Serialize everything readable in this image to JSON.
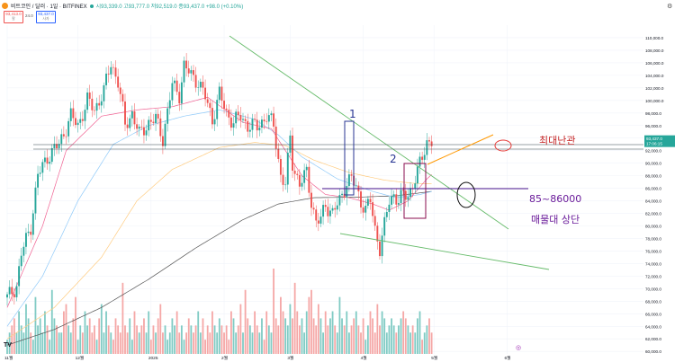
{
  "header": {
    "symbol": "비트코인 / 달러 · 1일 · BITFINEX",
    "ohlc": "시93,339.0 고93,777.0 저92,519.0 종93,437.0 +98.0 (+0.10%)",
    "sell_price": "93,413.0",
    "sell_label": "팔",
    "spread": "24.0",
    "buy_price": "93,437.0",
    "buy_label": "사자"
  },
  "chart_data": {
    "type": "candlestick",
    "title": "비트코인 / 달러 · 1일 · BITFINEX",
    "y_ticks": [
      60000,
      62000,
      64000,
      66000,
      68000,
      70000,
      72000,
      74000,
      76000,
      78000,
      80000,
      82000,
      84000,
      86000,
      88000,
      90000,
      92000,
      94000,
      96000,
      98000,
      100000,
      102000,
      104000,
      106000,
      108000,
      110000
    ],
    "y_tick_labels": [
      "60,000.0",
      "62,000.0",
      "64,000.0",
      "66,000.0",
      "68,000.0",
      "70,000.0",
      "72,000.0",
      "74,000.0",
      "76,000.0",
      "78,000.0",
      "80,000.0",
      "82,000.0",
      "84,000.0",
      "86,000.0",
      "88,000.0",
      "90,000.0",
      "92,000.0",
      "94,000.0",
      "96,000.0",
      "98,000.0",
      "100,000.0",
      "102,000.0",
      "104,000.0",
      "106,000.0",
      "108,000.0",
      "110,000.0"
    ],
    "ylim": [
      59600,
      112000
    ],
    "x_labels": [
      "11월",
      "12월",
      "2025",
      "2월",
      "3월",
      "4월",
      "5월",
      "6월"
    ],
    "x_label_days": [
      0,
      30,
      61,
      92,
      120,
      151,
      181,
      212
    ],
    "x_range": [
      0,
      235
    ],
    "last_day": 180,
    "price_path": [
      [
        0,
        68500
      ],
      [
        4,
        70500
      ],
      [
        6,
        75500
      ],
      [
        10,
        80000
      ],
      [
        13,
        88000
      ],
      [
        17,
        91000
      ],
      [
        22,
        93000
      ],
      [
        27,
        97500
      ],
      [
        30,
        96000
      ],
      [
        34,
        100000
      ],
      [
        37,
        98500
      ],
      [
        41,
        101500
      ],
      [
        44,
        106000
      ],
      [
        47,
        103000
      ],
      [
        50,
        96000
      ],
      [
        53,
        98000
      ],
      [
        56,
        94500
      ],
      [
        60,
        96500
      ],
      [
        63,
        97000
      ],
      [
        66,
        94000
      ],
      [
        70,
        102500
      ],
      [
        73,
        101000
      ],
      [
        75,
        105500
      ],
      [
        78,
        104000
      ],
      [
        81,
        103000
      ],
      [
        84,
        100500
      ],
      [
        87,
        97000
      ],
      [
        90,
        101000
      ],
      [
        93,
        98000
      ],
      [
        96,
        96500
      ],
      [
        99,
        97500
      ],
      [
        102,
        96000
      ],
      [
        106,
        95800
      ],
      [
        110,
        97500
      ],
      [
        113,
        96000
      ],
      [
        116,
        88000
      ],
      [
        118,
        86500
      ],
      [
        120,
        94000
      ],
      [
        121,
        90000
      ],
      [
        124,
        86500
      ],
      [
        127,
        88500
      ],
      [
        129,
        84000
      ],
      [
        131,
        80500
      ],
      [
        133,
        81000
      ],
      [
        135,
        83500
      ],
      [
        138,
        82000
      ],
      [
        141,
        84000
      ],
      [
        144,
        87000
      ],
      [
        146,
        87500
      ],
      [
        148,
        86000
      ],
      [
        150,
        84000
      ],
      [
        152,
        82500
      ],
      [
        154,
        84000
      ],
      [
        156,
        79500
      ],
      [
        158,
        76500
      ],
      [
        160,
        80000
      ],
      [
        162,
        84000
      ],
      [
        164,
        85000
      ],
      [
        166,
        84000
      ],
      [
        168,
        84800
      ],
      [
        170,
        85000
      ],
      [
        172,
        86500
      ],
      [
        174,
        88500
      ],
      [
        176,
        91000
      ],
      [
        178,
        93500
      ],
      [
        180,
        93437
      ]
    ],
    "ma_short": [
      [
        0,
        67000
      ],
      [
        15,
        80000
      ],
      [
        25,
        92000
      ],
      [
        40,
        97500
      ],
      [
        55,
        98500
      ],
      [
        70,
        99000
      ],
      [
        85,
        100500
      ],
      [
        100,
        96500
      ],
      [
        112,
        95500
      ],
      [
        118,
        92000
      ],
      [
        125,
        88000
      ],
      [
        135,
        85000
      ],
      [
        145,
        84500
      ],
      [
        155,
        83500
      ],
      [
        162,
        82500
      ],
      [
        170,
        84000
      ],
      [
        178,
        87500
      ],
      [
        180,
        88200
      ]
    ],
    "ma_mid": [
      [
        0,
        64000
      ],
      [
        15,
        72000
      ],
      [
        30,
        84000
      ],
      [
        45,
        93000
      ],
      [
        60,
        96000
      ],
      [
        75,
        97500
      ],
      [
        90,
        98500
      ],
      [
        105,
        97000
      ],
      [
        115,
        94500
      ],
      [
        125,
        91000
      ],
      [
        140,
        87500
      ],
      [
        155,
        85500
      ],
      [
        165,
        84500
      ],
      [
        175,
        85000
      ],
      [
        180,
        85500
      ]
    ],
    "ma_long": [
      [
        0,
        62000
      ],
      [
        20,
        67000
      ],
      [
        40,
        75000
      ],
      [
        55,
        84000
      ],
      [
        70,
        89000
      ],
      [
        90,
        92500
      ],
      [
        105,
        93300
      ],
      [
        118,
        92800
      ],
      [
        130,
        90500
      ],
      [
        145,
        88500
      ],
      [
        160,
        87300
      ],
      [
        172,
        86800
      ],
      [
        180,
        86700
      ]
    ],
    "ma_200": [
      [
        0,
        61000
      ],
      [
        20,
        63500
      ],
      [
        40,
        67000
      ],
      [
        60,
        71500
      ],
      [
        80,
        76500
      ],
      [
        100,
        81000
      ],
      [
        115,
        83500
      ],
      [
        130,
        84500
      ],
      [
        150,
        84600
      ],
      [
        165,
        84800
      ],
      [
        180,
        85500
      ]
    ],
    "volume": [
      2,
      3,
      4,
      5,
      3,
      6,
      4,
      3,
      7,
      5,
      3,
      2,
      8,
      4,
      5,
      3,
      6,
      4,
      2,
      9,
      5,
      4,
      3,
      3,
      6,
      7,
      4,
      3,
      5,
      8,
      2,
      4,
      3,
      6,
      4,
      5,
      3,
      4,
      2,
      5,
      7,
      3,
      6,
      4,
      3,
      2,
      5,
      4,
      3,
      10,
      4,
      3,
      5,
      2,
      6,
      4,
      3,
      4,
      5,
      3,
      6,
      2,
      4,
      3,
      5,
      7,
      3,
      4,
      2,
      3,
      5,
      4,
      6,
      3,
      4,
      2,
      3,
      5,
      4,
      3,
      4,
      6,
      3,
      5,
      2,
      4,
      3,
      6,
      4,
      3,
      5,
      4,
      3,
      4,
      2,
      6,
      5,
      3,
      4,
      7,
      3,
      9,
      5,
      4,
      3,
      6,
      4,
      3,
      5,
      2,
      6,
      4,
      3,
      12,
      5,
      4,
      8,
      6,
      5,
      4,
      7,
      5,
      10,
      6,
      4,
      5,
      3,
      6,
      8,
      9,
      5,
      4,
      7,
      5,
      3,
      6,
      4,
      5,
      6,
      4,
      3,
      8,
      5,
      4,
      6,
      3,
      4,
      5,
      6,
      4,
      3,
      5,
      2,
      4,
      6,
      5,
      3,
      7,
      4,
      6,
      5,
      3,
      4,
      5,
      4,
      3,
      4,
      5,
      6,
      5,
      4,
      3,
      4,
      3,
      5,
      6
    ],
    "series": []
  },
  "price_labels": {
    "current": "93,437.0",
    "countdown": "17:06:15"
  },
  "annotations": {
    "label_1": "1",
    "label_2": "2",
    "resistance": "최대난관",
    "zone_price": "85~86000",
    "zone_desc": "매물대 상단"
  },
  "colors": {
    "up": "#26a69a",
    "down": "#ef5350",
    "ma_short": "#f06292",
    "ma_mid": "#90caf9",
    "ma_long": "#ffcc80",
    "ma_200": "#555555",
    "trend": "#66bb6a",
    "channel": "#ff9800",
    "horizontal_zone": "#4a148c",
    "box1": "#283593",
    "box2": "#880e4f",
    "annotation_red": "#c62828",
    "annotation_purple": "#6a1b9a"
  }
}
